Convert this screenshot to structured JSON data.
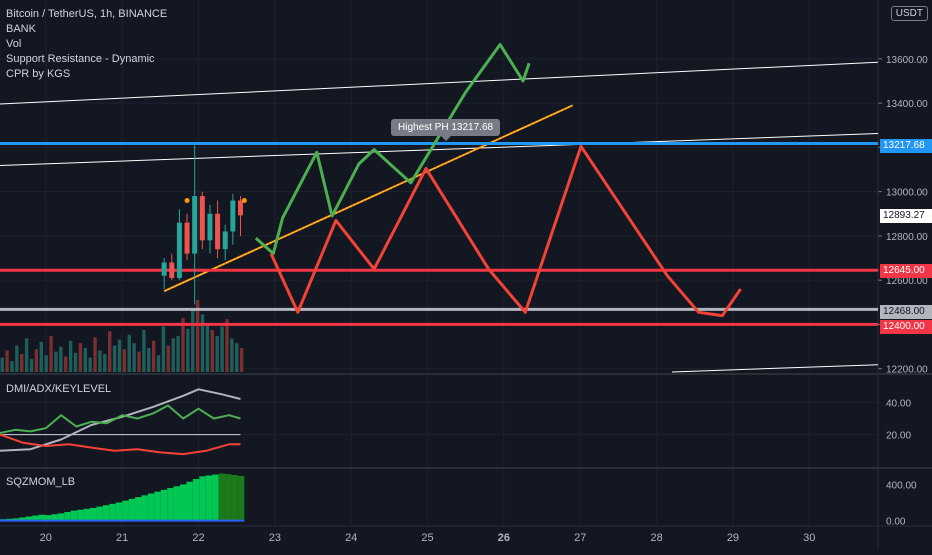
{
  "header": {
    "symbol_line": "Bitcoin / TetherUS, 1h, BINANCE",
    "indicators": [
      "BANK",
      "Vol",
      "Support Resistance - Dynamic",
      "CPR by KGS"
    ],
    "currency_button": "USDT"
  },
  "tooltip": "Highest PH  13217.68",
  "price_tags": {
    "level_13217": "13217.68",
    "current": "12893.27",
    "level_12645": "12645.00",
    "level_12468": "12468.00",
    "level_12400": "12400.00"
  },
  "colors": {
    "background": "#131722",
    "up": "#26a69a",
    "down": "#ef5350",
    "blue_level": "#2196f3",
    "red_level": "#f23645",
    "grey_level": "#b2b5be",
    "green_path": "#4caf50",
    "red_path": "#f44336",
    "trendline": "#ff9800"
  },
  "chart_data": [
    {
      "type": "line",
      "pane": "price",
      "title": "Bitcoin / TetherUS, 1h, BINANCE",
      "xlabel": "",
      "ylabel": "",
      "y_ticks": [
        "12200.00",
        "12400.00",
        "12600.00",
        "12800.00",
        "13000.00",
        "13200.00",
        "13400.00",
        "13600.00"
      ],
      "x_ticks": [
        "20",
        "21",
        "22",
        "23",
        "24",
        "25",
        "26",
        "27",
        "28",
        "29",
        "30"
      ],
      "x_bold": [
        "26"
      ],
      "x_range": [
        19.4,
        30.9
      ],
      "ylim": [
        12185,
        13830
      ],
      "grid": true,
      "horizontal_levels": [
        {
          "value": 13217.68,
          "color": "#2196f3"
        },
        {
          "value": 12645,
          "color": "#f23645"
        },
        {
          "value": 12468,
          "color": "#b2b5be"
        },
        {
          "value": 12400,
          "color": "#f23645"
        }
      ],
      "lines": [
        {
          "name": "",
          "color": "#ffffff",
          "points": [
            [
              19.3,
              13395
            ],
            [
              30.9,
              13585
            ]
          ]
        },
        {
          "name": "",
          "color": "#ffffff",
          "points": [
            [
              19.3,
              13117
            ],
            [
              30.9,
              13263
            ]
          ]
        },
        {
          "name": "",
          "color": "#ffffff",
          "points": [
            [
              28.2,
              12185
            ],
            [
              30.9,
              12218
            ]
          ]
        },
        {
          "name": "",
          "color": "#ff9800",
          "points": [
            [
              21.55,
              12550
            ],
            [
              26.9,
              13390
            ]
          ]
        }
      ],
      "projection_paths": [
        {
          "color": "#4caf50",
          "points": [
            [
              22.75,
              12790
            ],
            [
              22.98,
              12720
            ],
            [
              23.1,
              12880
            ],
            [
              23.55,
              13178
            ],
            [
              23.75,
              12890
            ],
            [
              24.1,
              13125
            ],
            [
              24.3,
              13190
            ],
            [
              24.78,
              13040
            ],
            [
              25.5,
              13450
            ],
            [
              25.95,
              13665
            ],
            [
              26.25,
              13500
            ],
            [
              26.33,
              13580
            ]
          ]
        },
        {
          "color": "#f44336",
          "points": [
            [
              22.95,
              12720
            ],
            [
              23.3,
              12455
            ],
            [
              23.8,
              12870
            ],
            [
              24.3,
              12650
            ],
            [
              24.98,
              13105
            ],
            [
              25.8,
              12650
            ],
            [
              26.28,
              12455
            ],
            [
              27.01,
              13205
            ],
            [
              28.14,
              12620
            ],
            [
              28.55,
              12455
            ],
            [
              28.86,
              12440
            ],
            [
              29.1,
              12560
            ]
          ]
        }
      ],
      "candles": [
        [
          21.55,
          12620,
          12700,
          12560,
          12680
        ],
        [
          21.65,
          12680,
          12720,
          12600,
          12610
        ],
        [
          21.75,
          12610,
          12920,
          12600,
          12860
        ],
        [
          21.85,
          12860,
          12900,
          12690,
          12720
        ],
        [
          21.95,
          12720,
          13210,
          12490,
          12980
        ],
        [
          22.05,
          12980,
          13000,
          12740,
          12780
        ],
        [
          22.15,
          12780,
          12940,
          12720,
          12900
        ],
        [
          22.25,
          12900,
          12960,
          12700,
          12740
        ],
        [
          22.35,
          12740,
          12850,
          12690,
          12820
        ],
        [
          22.45,
          12820,
          12990,
          12760,
          12960
        ],
        [
          22.55,
          12960,
          12980,
          12800,
          12893
        ]
      ],
      "markers": [
        [
          21.85,
          12960
        ],
        [
          22.6,
          12960
        ]
      ]
    },
    {
      "type": "bar",
      "pane": "volume",
      "title": "Vol",
      "values": [
        12,
        18,
        9,
        22,
        15,
        28,
        11,
        19,
        25,
        14,
        30,
        17,
        21,
        13,
        26,
        16,
        24,
        20,
        12,
        29,
        18,
        15,
        34,
        22,
        27,
        19,
        31,
        24,
        17,
        35,
        20,
        26,
        14,
        38,
        22,
        28,
        30,
        45,
        36,
        52,
        60,
        48,
        40,
        35,
        30,
        38,
        44,
        28,
        24,
        20
      ]
    },
    {
      "type": "line",
      "pane": "dmi",
      "title": "DMI/ADX/KEYLEVEL",
      "y_ticks": [
        "20.00",
        "40.00"
      ],
      "ylim": [
        0,
        55
      ],
      "series": [
        {
          "name": "",
          "color": "#b2b5be",
          "x": [
            19.4,
            19.8,
            20.2,
            20.6,
            21.0,
            21.4,
            21.8,
            22.0,
            22.3,
            22.55
          ],
          "values": [
            10,
            11,
            17,
            26,
            31,
            37,
            44,
            48,
            45,
            42
          ]
        },
        {
          "name": "",
          "color": "#4caf50",
          "x": [
            19.4,
            19.6,
            19.8,
            20.0,
            20.2,
            20.4,
            20.6,
            20.8,
            21.0,
            21.2,
            21.4,
            21.6,
            21.8,
            22.0,
            22.2,
            22.4,
            22.55
          ],
          "values": [
            21,
            23,
            22,
            24,
            32,
            25,
            28,
            27,
            32,
            30,
            33,
            38,
            30,
            36,
            30,
            32,
            30
          ]
        },
        {
          "name": "",
          "color": "#f44336",
          "x": [
            19.4,
            19.7,
            20.0,
            20.3,
            20.6,
            20.9,
            21.2,
            21.5,
            21.8,
            22.1,
            22.4,
            22.55
          ],
          "values": [
            20,
            15,
            13,
            14,
            12,
            10,
            11,
            9,
            8,
            10,
            14,
            14
          ]
        }
      ]
    },
    {
      "type": "bar",
      "pane": "sqzmom",
      "title": "SQZMOM_LB",
      "y_ticks": [
        "0.00",
        "400.00"
      ],
      "ylim": [
        -60,
        560
      ],
      "values": [
        15,
        20,
        25,
        35,
        45,
        55,
        65,
        60,
        70,
        80,
        95,
        110,
        120,
        130,
        140,
        155,
        170,
        185,
        200,
        220,
        240,
        260,
        280,
        300,
        320,
        340,
        360,
        380,
        400,
        430,
        460,
        490,
        500,
        510,
        520,
        515,
        505,
        495
      ]
    }
  ]
}
